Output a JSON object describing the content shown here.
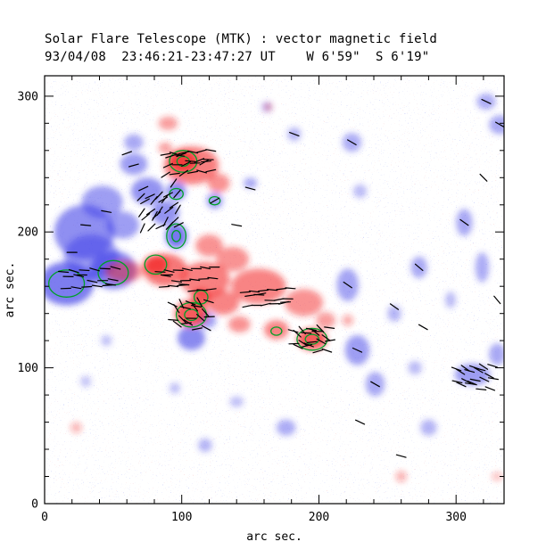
{
  "header": {
    "title": "Solar Flare Telescope (MTK) : vector magnetic field",
    "subtitle": "93/04/08  23:46:21-23:47:27 UT    W 6'59\"  S 6'19\""
  },
  "chart_data": {
    "type": "heatmap",
    "title": "Solar Flare Telescope (MTK) : vector magnetic field",
    "subtitle": "93/04/08  23:46:21-23:47:27 UT    W 6'59\"  S 6'19\"",
    "xlabel": "arc sec.",
    "ylabel": "arc sec.",
    "xlim": [
      0,
      335
    ],
    "ylim": [
      0,
      315
    ],
    "xticks": [
      0,
      100,
      200,
      300
    ],
    "yticks": [
      0,
      100,
      200,
      300
    ],
    "minor_tick_interval": 20,
    "grid": false,
    "legend": "none",
    "colors": {
      "positive": "#f21f1f",
      "negative": "#3a3ae6",
      "contour": "#00a028",
      "vector": "#000000",
      "frame": "#000000",
      "background": "#ffffff"
    },
    "vector_length": 11,
    "regions": [
      {
        "x": 16,
        "y": 162,
        "rx": 20,
        "ry": 16,
        "pol": -1,
        "i": 0.9
      },
      {
        "x": 29,
        "y": 200,
        "rx": 22,
        "ry": 20,
        "pol": -1,
        "i": 0.75
      },
      {
        "x": 50,
        "y": 172,
        "rx": 17,
        "ry": 14,
        "pol": -1,
        "i": 0.85
      },
      {
        "x": 42,
        "y": 222,
        "rx": 15,
        "ry": 12,
        "pol": -1,
        "i": 0.6
      },
      {
        "x": 34,
        "y": 182,
        "rx": 20,
        "ry": 16,
        "pol": -1,
        "i": 0.6
      },
      {
        "x": 57,
        "y": 205,
        "rx": 12,
        "ry": 10,
        "pol": -1,
        "i": 0.6
      },
      {
        "x": 75,
        "y": 230,
        "rx": 12,
        "ry": 10,
        "pol": -1,
        "i": 0.7
      },
      {
        "x": 88,
        "y": 214,
        "rx": 10,
        "ry": 9,
        "pol": -1,
        "i": 0.7
      },
      {
        "x": 96,
        "y": 197,
        "rx": 8,
        "ry": 9,
        "pol": -1,
        "i": 0.95
      },
      {
        "x": 96,
        "y": 230,
        "rx": 7,
        "ry": 7,
        "pol": -1,
        "i": 0.8
      },
      {
        "x": 65,
        "y": 250,
        "rx": 10,
        "ry": 8,
        "pol": -1,
        "i": 0.6
      },
      {
        "x": 65,
        "y": 266,
        "rx": 7,
        "ry": 6,
        "pol": -1,
        "i": 0.5
      },
      {
        "x": 107,
        "y": 122,
        "rx": 10,
        "ry": 9,
        "pol": -1,
        "i": 0.8
      },
      {
        "x": 118,
        "y": 135,
        "rx": 7,
        "ry": 6,
        "pol": -1,
        "i": 0.6
      },
      {
        "x": 124,
        "y": 223,
        "rx": 6,
        "ry": 6,
        "pol": -1,
        "i": 0.6
      },
      {
        "x": 150,
        "y": 236,
        "rx": 5,
        "ry": 4,
        "pol": -1,
        "i": 0.5
      },
      {
        "x": 221,
        "y": 161,
        "rx": 8,
        "ry": 12,
        "pol": -1,
        "i": 0.55
      },
      {
        "x": 228,
        "y": 113,
        "rx": 9,
        "ry": 11,
        "pol": -1,
        "i": 0.6
      },
      {
        "x": 241,
        "y": 88,
        "rx": 7,
        "ry": 9,
        "pol": -1,
        "i": 0.5
      },
      {
        "x": 224,
        "y": 266,
        "rx": 7,
        "ry": 7,
        "pol": -1,
        "i": 0.45
      },
      {
        "x": 273,
        "y": 174,
        "rx": 6,
        "ry": 8,
        "pol": -1,
        "i": 0.5
      },
      {
        "x": 306,
        "y": 207,
        "rx": 6,
        "ry": 10,
        "pol": -1,
        "i": 0.5
      },
      {
        "x": 319,
        "y": 174,
        "rx": 5,
        "ry": 11,
        "pol": -1,
        "i": 0.45
      },
      {
        "x": 312,
        "y": 95,
        "rx": 13,
        "ry": 8,
        "pol": -1,
        "i": 0.6
      },
      {
        "x": 330,
        "y": 110,
        "rx": 6,
        "ry": 8,
        "pol": -1,
        "i": 0.5
      },
      {
        "x": 332,
        "y": 279,
        "rx": 8,
        "ry": 7,
        "pol": -1,
        "i": 0.5
      },
      {
        "x": 322,
        "y": 296,
        "rx": 7,
        "ry": 6,
        "pol": -1,
        "i": 0.45
      },
      {
        "x": 280,
        "y": 56,
        "rx": 6,
        "ry": 6,
        "pol": -1,
        "i": 0.4
      },
      {
        "x": 176,
        "y": 56,
        "rx": 7,
        "ry": 6,
        "pol": -1,
        "i": 0.45
      },
      {
        "x": 117,
        "y": 43,
        "rx": 5,
        "ry": 5,
        "pol": -1,
        "i": 0.4
      },
      {
        "x": 182,
        "y": 272,
        "rx": 5,
        "ry": 5,
        "pol": -1,
        "i": 0.4
      },
      {
        "x": 162,
        "y": 292,
        "rx": 4,
        "ry": 4,
        "pol": -1,
        "i": 0.35
      },
      {
        "x": 255,
        "y": 140,
        "rx": 5,
        "ry": 6,
        "pol": -1,
        "i": 0.4
      },
      {
        "x": 296,
        "y": 150,
        "rx": 4,
        "ry": 6,
        "pol": -1,
        "i": 0.35
      },
      {
        "x": 230,
        "y": 230,
        "rx": 5,
        "ry": 5,
        "pol": -1,
        "i": 0.35
      },
      {
        "x": 270,
        "y": 100,
        "rx": 5,
        "ry": 5,
        "pol": -1,
        "i": 0.35
      },
      {
        "x": 140,
        "y": 75,
        "rx": 5,
        "ry": 4,
        "pol": -1,
        "i": 0.3
      },
      {
        "x": 95,
        "y": 85,
        "rx": 4,
        "ry": 4,
        "pol": -1,
        "i": 0.3
      },
      {
        "x": 45,
        "y": 120,
        "rx": 4,
        "ry": 4,
        "pol": -1,
        "i": 0.3
      },
      {
        "x": 30,
        "y": 90,
        "rx": 4,
        "ry": 4,
        "pol": -1,
        "i": 0.25
      },
      {
        "x": 107,
        "y": 249,
        "rx": 20,
        "ry": 14,
        "pol": 1,
        "i": 0.75
      },
      {
        "x": 101,
        "y": 252,
        "rx": 10,
        "ry": 8,
        "pol": 1,
        "i": 0.95
      },
      {
        "x": 127,
        "y": 236,
        "rx": 8,
        "ry": 7,
        "pol": 1,
        "i": 0.6
      },
      {
        "x": 90,
        "y": 280,
        "rx": 7,
        "ry": 5,
        "pol": 1,
        "i": 0.5
      },
      {
        "x": 88,
        "y": 262,
        "rx": 5,
        "ry": 4,
        "pol": 1,
        "i": 0.5
      },
      {
        "x": 58,
        "y": 171,
        "rx": 14,
        "ry": 8,
        "pol": 1,
        "i": 0.55
      },
      {
        "x": 88,
        "y": 172,
        "rx": 16,
        "ry": 12,
        "pol": 1,
        "i": 0.8
      },
      {
        "x": 81,
        "y": 176,
        "rx": 9,
        "ry": 7,
        "pol": 1,
        "i": 0.95
      },
      {
        "x": 117,
        "y": 165,
        "rx": 18,
        "ry": 13,
        "pol": 1,
        "i": 0.75
      },
      {
        "x": 107,
        "y": 140,
        "rx": 12,
        "ry": 10,
        "pol": 1,
        "i": 1.0
      },
      {
        "x": 114,
        "y": 152,
        "rx": 7,
        "ry": 6,
        "pol": 1,
        "i": 0.9
      },
      {
        "x": 130,
        "y": 148,
        "rx": 12,
        "ry": 9,
        "pol": 1,
        "i": 0.7
      },
      {
        "x": 156,
        "y": 160,
        "rx": 20,
        "ry": 13,
        "pol": 1,
        "i": 0.7
      },
      {
        "x": 189,
        "y": 148,
        "rx": 14,
        "ry": 10,
        "pol": 1,
        "i": 0.6
      },
      {
        "x": 195,
        "y": 121,
        "rx": 11,
        "ry": 8,
        "pol": 1,
        "i": 1.0
      },
      {
        "x": 169,
        "y": 128,
        "rx": 9,
        "ry": 7,
        "pol": 1,
        "i": 0.7
      },
      {
        "x": 142,
        "y": 132,
        "rx": 8,
        "ry": 6,
        "pol": 1,
        "i": 0.6
      },
      {
        "x": 120,
        "y": 190,
        "rx": 10,
        "ry": 8,
        "pol": 1,
        "i": 0.6
      },
      {
        "x": 137,
        "y": 180,
        "rx": 12,
        "ry": 9,
        "pol": 1,
        "i": 0.6
      },
      {
        "x": 205,
        "y": 135,
        "rx": 7,
        "ry": 6,
        "pol": 1,
        "i": 0.5
      },
      {
        "x": 221,
        "y": 135,
        "rx": 4,
        "ry": 4,
        "pol": 1,
        "i": 0.4
      },
      {
        "x": 260,
        "y": 20,
        "rx": 4,
        "ry": 4,
        "pol": 1,
        "i": 0.35
      },
      {
        "x": 23,
        "y": 56,
        "rx": 4,
        "ry": 4,
        "pol": 1,
        "i": 0.3
      },
      {
        "x": 163,
        "y": 292,
        "rx": 3,
        "ry": 3,
        "pol": 1,
        "i": 0.3
      },
      {
        "x": 330,
        "y": 20,
        "rx": 4,
        "ry": 3,
        "pol": 1,
        "i": 0.25
      }
    ],
    "contours": [
      {
        "x": 16,
        "y": 162,
        "rx": 13,
        "ry": 10,
        "inner": false
      },
      {
        "x": 50,
        "y": 170,
        "rx": 11,
        "ry": 9,
        "inner": false
      },
      {
        "x": 81,
        "y": 176,
        "rx": 8,
        "ry": 7,
        "inner": false
      },
      {
        "x": 96,
        "y": 197,
        "rx": 7,
        "ry": 9,
        "inner": true
      },
      {
        "x": 101,
        "y": 252,
        "rx": 10,
        "ry": 8,
        "inner": true
      },
      {
        "x": 96,
        "y": 228,
        "rx": 5,
        "ry": 4,
        "inner": false
      },
      {
        "x": 107,
        "y": 139,
        "rx": 11,
        "ry": 9,
        "inner": true
      },
      {
        "x": 114,
        "y": 152,
        "rx": 5,
        "ry": 5,
        "inner": false
      },
      {
        "x": 195,
        "y": 121,
        "rx": 11,
        "ry": 8,
        "inner": true
      },
      {
        "x": 169,
        "y": 127,
        "rx": 4,
        "ry": 3,
        "inner": false
      },
      {
        "x": 124,
        "y": 223,
        "rx": 4,
        "ry": 3,
        "inner": false
      }
    ],
    "vector_clusters": [
      {
        "x": 105,
        "y": 252,
        "cols": 6,
        "rows": 4,
        "sx": 6,
        "sy": 5,
        "angle": -10,
        "jit": 25
      },
      {
        "x": 84,
        "y": 216,
        "cols": 5,
        "rows": 5,
        "sx": 6,
        "sy": 6,
        "angle": -45,
        "jit": 20
      },
      {
        "x": 33,
        "y": 166,
        "cols": 6,
        "rows": 3,
        "sx": 7,
        "sy": 7,
        "angle": 5,
        "jit": 12
      },
      {
        "x": 104,
        "y": 166,
        "cols": 7,
        "rows": 3,
        "sx": 6,
        "sy": 7,
        "angle": 3,
        "jit": 10
      },
      {
        "x": 107,
        "y": 140,
        "cols": 5,
        "rows": 4,
        "sx": 6,
        "sy": 6,
        "angle": 25,
        "jit": 40
      },
      {
        "x": 163,
        "y": 152,
        "cols": 6,
        "rows": 3,
        "sx": 6,
        "sy": 6,
        "angle": -5,
        "jit": 12
      },
      {
        "x": 195,
        "y": 122,
        "cols": 5,
        "rows": 4,
        "sx": 6,
        "sy": 5,
        "angle": 15,
        "jit": 35
      },
      {
        "x": 314,
        "y": 94,
        "cols": 5,
        "rows": 4,
        "sx": 6,
        "sy": 5,
        "angle": 20,
        "jit": 15
      }
    ],
    "vectors": [
      [
        124,
        223,
        -30
      ],
      [
        94,
        236,
        -55
      ],
      [
        72,
        232,
        -25
      ],
      [
        65,
        249,
        -15
      ],
      [
        60,
        258,
        -20
      ],
      [
        221,
        161,
        35
      ],
      [
        228,
        113,
        25
      ],
      [
        241,
        88,
        30
      ],
      [
        273,
        174,
        40
      ],
      [
        306,
        207,
        35
      ],
      [
        224,
        266,
        30
      ],
      [
        182,
        272,
        20
      ],
      [
        150,
        232,
        15
      ],
      [
        230,
        60,
        25
      ],
      [
        260,
        35,
        15
      ],
      [
        320,
        240,
        45
      ],
      [
        330,
        150,
        50
      ],
      [
        140,
        205,
        10
      ],
      [
        30,
        205,
        5
      ],
      [
        45,
        215,
        10
      ],
      [
        20,
        185,
        0
      ],
      [
        332,
        279,
        30
      ],
      [
        322,
        296,
        25
      ],
      [
        276,
        130,
        30
      ],
      [
        255,
        145,
        35
      ]
    ]
  }
}
